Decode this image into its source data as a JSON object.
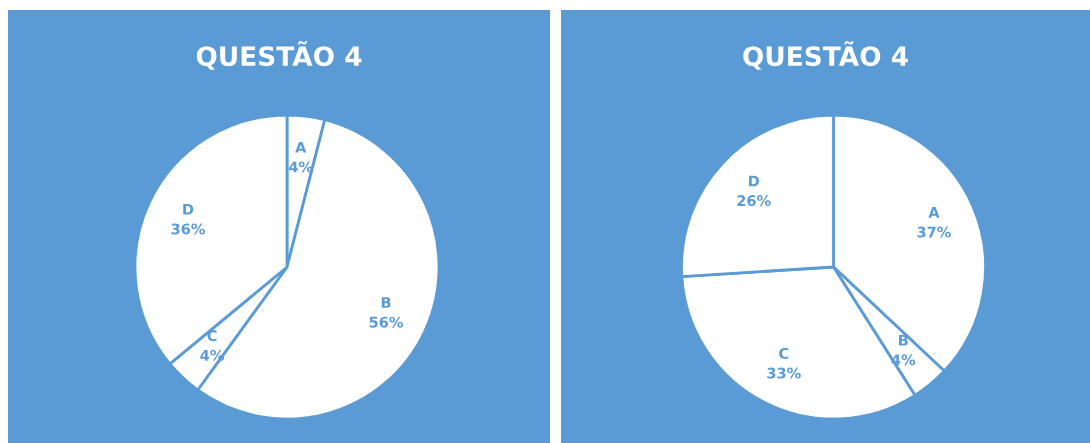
{
  "chart_data": [
    {
      "type": "pie",
      "title": "QUESTÃO 4",
      "categories": [
        "A",
        "B",
        "C",
        "D"
      ],
      "values": [
        4,
        56,
        4,
        36
      ],
      "colors": [
        "#ffffff",
        "#ffffff",
        "#ffffff",
        "#ffffff"
      ],
      "data_labels": true,
      "value_labels": [
        "4%",
        "56%",
        "4%",
        "36%"
      ],
      "legend": false
    },
    {
      "type": "pie",
      "title": "QUESTÃO 4",
      "categories": [
        "A",
        "B",
        "C",
        "D"
      ],
      "values": [
        37,
        4,
        33,
        26
      ],
      "colors": [
        "#ffffff",
        "#ffffff",
        "#ffffff",
        "#ffffff"
      ],
      "data_labels": true,
      "value_labels": [
        "37%",
        "4%",
        "33%",
        "26%"
      ],
      "legend": false
    }
  ]
}
